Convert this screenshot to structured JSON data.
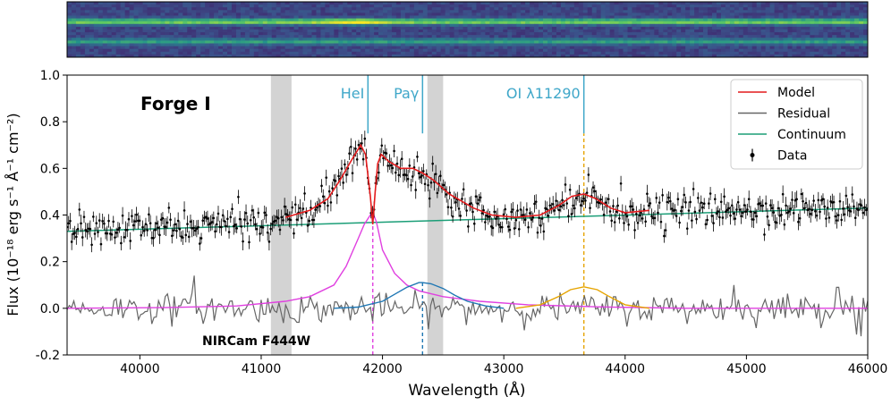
{
  "chart_data": {
    "type": "line",
    "title": "Forge I",
    "bottom_label": "NIRCam F444W",
    "xlabel": "Wavelength (Å)",
    "ylabel": "Flux (10⁻¹⁸ erg s⁻¹ Å⁻¹ cm⁻²)",
    "xlim": [
      39400,
      46000
    ],
    "ylim": [
      -0.2,
      1.0
    ],
    "x_ticks": [
      40000,
      41000,
      42000,
      43000,
      44000,
      45000,
      46000
    ],
    "x_tick_labels": [
      "40000",
      "41000",
      "42000",
      "43000",
      "44000",
      "45000",
      "46000"
    ],
    "y_ticks": [
      -0.2,
      0.0,
      0.2,
      0.4,
      0.6,
      0.8,
      1.0
    ],
    "y_tick_labels": [
      "-0.2",
      "0.0",
      "0.2",
      "0.4",
      "0.6",
      "0.8",
      "1.0"
    ],
    "grid": false,
    "legend_position": "top-right",
    "legend": [
      {
        "label": "Model",
        "color": "#e41a1c",
        "kind": "line"
      },
      {
        "label": "Residual",
        "color": "#666666",
        "kind": "line"
      },
      {
        "label": "Continuum",
        "color": "#1b9e77",
        "kind": "line"
      },
      {
        "label": "Data",
        "color": "#000000",
        "kind": "errorbar"
      }
    ],
    "shaded_regions": [
      {
        "x0": 41080,
        "x1": 41250
      },
      {
        "x0": 42370,
        "x1": 42500
      }
    ],
    "line_markers": [
      {
        "label": "HeI",
        "x": 41880,
        "color": "#3fa7c9"
      },
      {
        "label": "Paγ",
        "x": 42330,
        "color": "#3fa7c9"
      },
      {
        "label": "OI λ11290",
        "x": 43660,
        "color": "#3fa7c9"
      }
    ],
    "vlines": [
      {
        "x": 41920,
        "color": "#e040e0",
        "y0": -0.2,
        "y1": 0.4
      },
      {
        "x": 42330,
        "color": "#1f77b4",
        "y0": -0.2,
        "y1": 0.11
      },
      {
        "x": 43660,
        "color": "#e6a400",
        "y0": -0.2,
        "y1": 0.75
      }
    ],
    "continuum": {
      "color": "#1b9e77",
      "x": [
        39400,
        46000
      ],
      "y": [
        0.33,
        0.43
      ]
    },
    "components": [
      {
        "name": "HeI",
        "color": "#e040e0",
        "x": [
          39400,
          40200,
          40800,
          41200,
          41400,
          41600,
          41700,
          41800,
          41850,
          41900,
          41920,
          41950,
          42000,
          42100,
          42200,
          42300,
          42500,
          42800,
          43200,
          43800,
          44500,
          46000
        ],
        "y": [
          0.0,
          0.003,
          0.01,
          0.03,
          0.05,
          0.1,
          0.18,
          0.3,
          0.36,
          0.4,
          0.41,
          0.37,
          0.25,
          0.15,
          0.1,
          0.075,
          0.05,
          0.03,
          0.015,
          0.006,
          0.0,
          0.0
        ]
      },
      {
        "name": "Paγ",
        "color": "#1f77b4",
        "x": [
          41600,
          41800,
          42000,
          42100,
          42200,
          42300,
          42330,
          42400,
          42500,
          42600,
          42700,
          42850,
          43000
        ],
        "y": [
          0.0,
          0.005,
          0.03,
          0.06,
          0.09,
          0.11,
          0.11,
          0.105,
          0.085,
          0.055,
          0.03,
          0.01,
          0.0
        ]
      },
      {
        "name": "OI λ11290",
        "color": "#e6a400",
        "x": [
          43100,
          43300,
          43450,
          43550,
          43660,
          43770,
          43870,
          44000,
          44200
        ],
        "y": [
          0.0,
          0.015,
          0.05,
          0.08,
          0.092,
          0.08,
          0.05,
          0.015,
          0.0
        ]
      }
    ],
    "model": {
      "color": "#e41a1c",
      "x": [
        41200,
        41400,
        41550,
        41650,
        41750,
        41820,
        41860,
        41900,
        41920,
        41940,
        41960,
        41990,
        42050,
        42150,
        42250,
        42330,
        42420,
        42550,
        42750,
        42900,
        43100,
        43300,
        43450,
        43560,
        43660,
        43760,
        43880,
        44000,
        44200
      ],
      "y": [
        0.39,
        0.42,
        0.47,
        0.55,
        0.64,
        0.7,
        0.66,
        0.48,
        0.36,
        0.5,
        0.62,
        0.66,
        0.63,
        0.6,
        0.6,
        0.58,
        0.55,
        0.49,
        0.43,
        0.4,
        0.39,
        0.4,
        0.44,
        0.48,
        0.49,
        0.47,
        0.43,
        0.41,
        0.42
      ]
    },
    "data_series": {
      "name": "Data",
      "color": "#000000",
      "x_start": 39400,
      "x_end": 46000,
      "n_points": 520,
      "anchor_x": [
        39400,
        40400,
        41000,
        41200,
        41400,
        41550,
        41650,
        41750,
        41820,
        41860,
        41900,
        41920,
        41940,
        41960,
        41990,
        42050,
        42150,
        42250,
        42330,
        42420,
        42550,
        42750,
        42900,
        43100,
        43300,
        43450,
        43560,
        43660,
        43760,
        43880,
        44000,
        44200,
        45000,
        46000
      ],
      "anchor_y": [
        0.33,
        0.35,
        0.37,
        0.39,
        0.42,
        0.47,
        0.55,
        0.64,
        0.7,
        0.66,
        0.48,
        0.36,
        0.5,
        0.62,
        0.66,
        0.63,
        0.6,
        0.6,
        0.58,
        0.55,
        0.49,
        0.43,
        0.4,
        0.39,
        0.4,
        0.44,
        0.48,
        0.49,
        0.47,
        0.43,
        0.41,
        0.42,
        0.42,
        0.43
      ],
      "scatter": 0.035,
      "error": 0.03
    },
    "residual": {
      "color": "#666666",
      "scatter": 0.03,
      "spikes": [
        {
          "x": 40450,
          "y": 0.14
        },
        {
          "x": 41300,
          "y": -0.06
        },
        {
          "x": 44900,
          "y": 0.1
        },
        {
          "x": 45750,
          "y": 0.09
        },
        {
          "x": 45950,
          "y": -0.12
        }
      ]
    },
    "spectrum_2d": {
      "colormap": "viridis",
      "traces": [
        {
          "row": 0.36,
          "strength": 1.0
        },
        {
          "row": 0.72,
          "strength": 0.45
        }
      ]
    }
  }
}
